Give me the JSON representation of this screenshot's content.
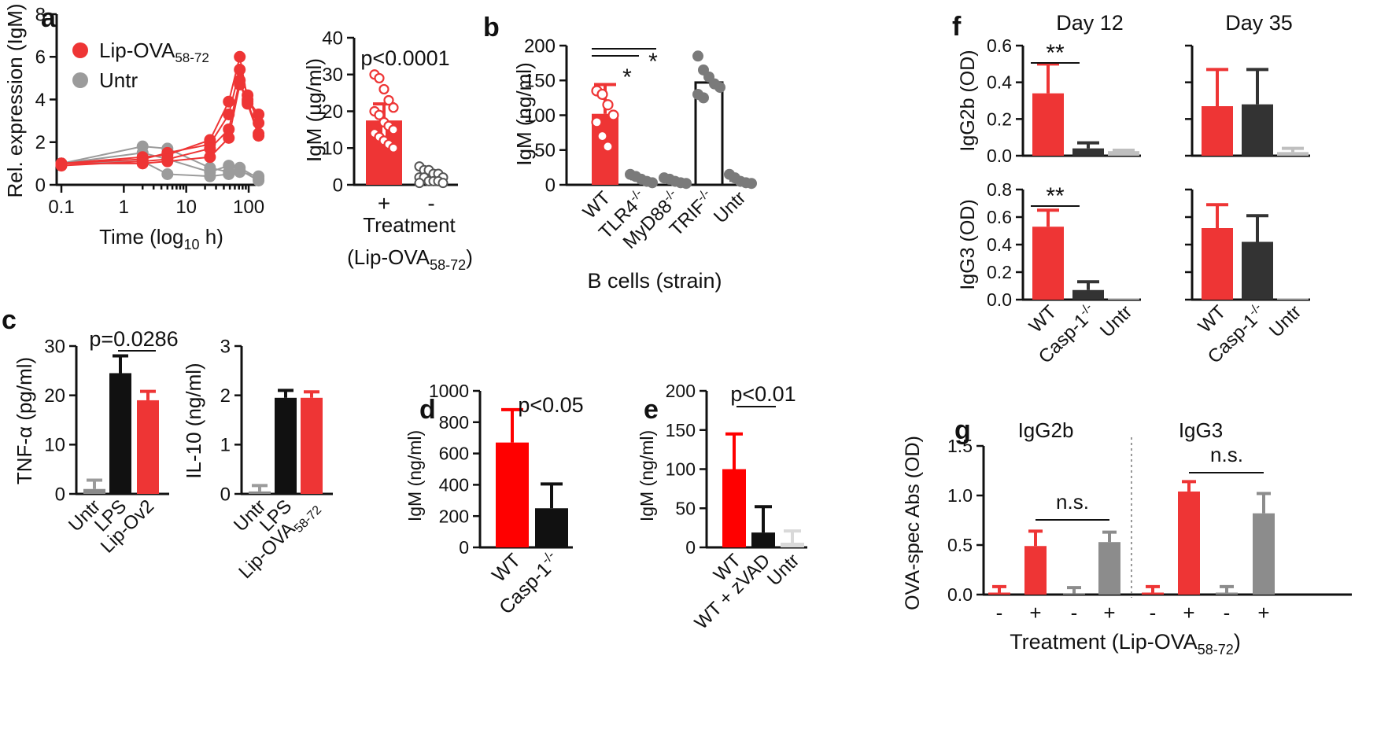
{
  "colors": {
    "red": "#ee3535",
    "grey": "#9b9b9b",
    "black": "#111111",
    "dark": "#333333",
    "light": "#cfcfcf"
  },
  "panels": {
    "a": {
      "letter": "a",
      "legend": [
        {
          "main": "Lip-OVA",
          "sub": "58-72"
        },
        {
          "main": "Untr",
          "sub": ""
        }
      ],
      "chart_data": {
        "type": "line",
        "xscale": "log",
        "xlabel": {
          "main": "Time (log",
          "sub": "10",
          "tail": " h)"
        },
        "ylabel": "Rel. expression (IgM)",
        "xticks": [
          {
            "v": 0.1,
            "label": "0.1"
          },
          {
            "v": 1,
            "label": "1"
          },
          {
            "v": 10,
            "label": "10"
          },
          {
            "v": 100,
            "label": "100"
          }
        ],
        "yticks": [
          0,
          2,
          4,
          6,
          8
        ],
        "ylim": [
          0,
          8
        ],
        "xlim": [
          0.1,
          150
        ],
        "series": [
          {
            "name": "Lip-OVA58-72",
            "color": "#ee3535",
            "lines": [
              [
                [
                  0.1,
                  1.0
                ],
                [
                  2,
                  1.3
                ],
                [
                  5,
                  1.4
                ],
                [
                  24,
                  2.1
                ],
                [
                  48,
                  3.9
                ],
                [
                  72,
                  6.0
                ],
                [
                  96,
                  4.0
                ],
                [
                  144,
                  3.3
                ]
              ],
              [
                [
                  0.1,
                  1.0
                ],
                [
                  2,
                  1.2
                ],
                [
                  5,
                  1.5
                ],
                [
                  24,
                  1.9
                ],
                [
                  48,
                  3.3
                ],
                [
                  72,
                  5.4
                ],
                [
                  96,
                  4.2
                ],
                [
                  144,
                  2.9
                ]
              ],
              [
                [
                  0.1,
                  0.9
                ],
                [
                  2,
                  1.1
                ],
                [
                  5,
                  1.2
                ],
                [
                  24,
                  1.7
                ],
                [
                  48,
                  2.6
                ],
                [
                  72,
                  4.9
                ],
                [
                  96,
                  3.8
                ],
                [
                  144,
                  2.3
                ]
              ],
              [
                [
                  0.1,
                  1.0
                ],
                [
                  2,
                  1.0
                ],
                [
                  5,
                  1.1
                ],
                [
                  24,
                  1.3
                ],
                [
                  48,
                  2.2
                ],
                [
                  72,
                  4.7
                ],
                [
                  96,
                  3.9
                ],
                [
                  144,
                  2.4
                ]
              ]
            ]
          },
          {
            "name": "Untr",
            "color": "#9b9b9b",
            "lines": [
              [
                [
                  0.1,
                  1.0
                ],
                [
                  2,
                  1.8
                ],
                [
                  5,
                  1.7
                ],
                [
                  24,
                  0.8
                ],
                [
                  48,
                  0.6
                ],
                [
                  72,
                  0.7
                ],
                [
                  144,
                  0.2
                ]
              ],
              [
                [
                  0.1,
                  1.0
                ],
                [
                  2,
                  1.5
                ],
                [
                  5,
                  1.2
                ],
                [
                  24,
                  0.6
                ],
                [
                  48,
                  0.9
                ],
                [
                  72,
                  0.8
                ],
                [
                  144,
                  0.3
                ]
              ],
              [
                [
                  0.1,
                  1.0
                ],
                [
                  2,
                  1.1
                ],
                [
                  5,
                  0.5
                ],
                [
                  24,
                  0.4
                ],
                [
                  48,
                  0.5
                ],
                [
                  72,
                  0.6
                ],
                [
                  144,
                  0.4
                ]
              ]
            ]
          }
        ]
      }
    },
    "a2": {
      "chart_data": {
        "type": "bar",
        "ylabel": "IgM (µg/ml)",
        "yticks": [
          0,
          10,
          20,
          30,
          40
        ],
        "ylim": [
          0,
          40
        ],
        "categories": [
          "+",
          "-"
        ],
        "values": [
          17.5,
          2.0
        ],
        "errors": [
          4.5,
          1.0
        ],
        "points": [
          [
            30,
            29,
            26,
            23,
            21,
            20,
            19,
            17,
            16,
            15,
            14,
            13,
            12,
            11,
            10
          ],
          [
            5,
            4,
            4,
            3,
            3,
            2,
            2,
            2,
            1,
            1,
            1,
            0.5,
            0.5
          ]
        ],
        "annotation": "p<0.0001",
        "xlabel": "Treatment",
        "xlabel2": {
          "main": "(Lip-OVA",
          "sub": "58-72",
          "tail": ")"
        }
      }
    },
    "b": {
      "letter": "b",
      "chart_data": {
        "type": "bar",
        "ylabel": "IgM (ng/ml)",
        "yticks": [
          0,
          50,
          100,
          150,
          200
        ],
        "ylim": [
          0,
          200
        ],
        "categories": [
          {
            "main": "WT",
            "sup": ""
          },
          {
            "main": "TLR4",
            "sup": "-/-"
          },
          {
            "main": "MyD88",
            "sup": "-/-"
          },
          {
            "main": "TRIF",
            "sup": "-/-"
          },
          {
            "main": "Untr",
            "sup": ""
          }
        ],
        "values": [
          102,
          8,
          6,
          147,
          6
        ],
        "errors": [
          42,
          0,
          0,
          0,
          0
        ],
        "points": [
          [
            135,
            130,
            115,
            100,
            90,
            70,
            55
          ],
          [
            15,
            12,
            8,
            5,
            3
          ],
          [
            10,
            8,
            5,
            3,
            2
          ],
          [
            185,
            165,
            155,
            145,
            140,
            130,
            125
          ],
          [
            15,
            10,
            5,
            3,
            2
          ]
        ],
        "stars": [
          "*",
          "*"
        ],
        "xlabel": "B cells (strain)"
      }
    },
    "c": {
      "letter": "c",
      "chart_data": [
        {
          "type": "bar",
          "ylabel": "TNF-α (pg/ml)",
          "yticks": [
            0,
            10,
            20,
            30
          ],
          "ylim": [
            0,
            30
          ],
          "categories": [
            {
              "main": "Untr",
              "sub": ""
            },
            {
              "main": "LPS",
              "sub": ""
            },
            {
              "main": "Lip-Ov2",
              "sub": ""
            }
          ],
          "values": [
            1.0,
            24.5,
            19.0
          ],
          "errors": [
            1.8,
            3.5,
            1.8
          ],
          "annotation": "p=0.0286"
        },
        {
          "type": "bar",
          "ylabel": "IL-10 (ng/ml)",
          "yticks": [
            0,
            1,
            2,
            3
          ],
          "ylim": [
            0,
            3
          ],
          "categories": [
            {
              "main": "Untr",
              "sub": ""
            },
            {
              "main": "LPS",
              "sub": ""
            },
            {
              "main": "Lip-OVA",
              "sub": "58-72"
            }
          ],
          "values": [
            0.05,
            1.95,
            1.95
          ],
          "errors": [
            0.12,
            0.15,
            0.12
          ]
        }
      ]
    },
    "d": {
      "letter": "d",
      "chart_data": {
        "type": "bar",
        "ylabel": "IgM (ng/ml)",
        "yticks": [
          0,
          200,
          400,
          600,
          800,
          1000
        ],
        "ylim": [
          0,
          1000
        ],
        "categories": [
          {
            "main": "WT",
            "sup": ""
          },
          {
            "main": "Casp-1",
            "sup": "-/-"
          }
        ],
        "values": [
          670,
          250
        ],
        "errors": [
          210,
          155
        ],
        "annotation": "p<0.05"
      }
    },
    "e": {
      "letter": "e",
      "chart_data": {
        "type": "bar",
        "ylabel": "IgM (ng/ml)",
        "yticks": [
          0,
          50,
          100,
          150,
          200
        ],
        "ylim": [
          0,
          200
        ],
        "categories": [
          {
            "main": "WT",
            "sup": ""
          },
          {
            "main": "WT + zVAD",
            "sup": ""
          },
          {
            "main": "Untr",
            "sup": ""
          }
        ],
        "values": [
          100,
          19,
          6
        ],
        "errors": [
          45,
          33,
          15
        ],
        "annotation": "p<0.01"
      }
    },
    "f": {
      "letter": "f",
      "chart_data": [
        {
          "type": "bar",
          "title": "Day 12",
          "ylabel": "IgG2b (OD)",
          "yticks": [
            0.0,
            0.2,
            0.4,
            0.6
          ],
          "ylim": [
            0,
            0.6
          ],
          "values": [
            0.34,
            0.04,
            0.025
          ],
          "errors": [
            0.16,
            0.03,
            0.005
          ],
          "stars": "**"
        },
        {
          "type": "bar",
          "title": "Day 35",
          "ylabel": "",
          "yticks": [
            0.0,
            0.2,
            0.4,
            0.6
          ],
          "ylim": [
            0,
            0.6
          ],
          "values": [
            0.27,
            0.28,
            0.02
          ],
          "errors": [
            0.2,
            0.19,
            0.02
          ]
        },
        {
          "type": "bar",
          "title": "",
          "ylabel": "IgG3 (OD)",
          "yticks": [
            0.0,
            0.2,
            0.4,
            0.6,
            0.8
          ],
          "ylim": [
            0,
            0.8
          ],
          "values": [
            0.53,
            0.07,
            0.01
          ],
          "errors": [
            0.12,
            0.06,
            0.0
          ],
          "stars": "**",
          "categories": [
            {
              "main": "WT",
              "sup": ""
            },
            {
              "main": "Casp-1",
              "sup": "-/-"
            },
            {
              "main": "Untr",
              "sup": ""
            }
          ]
        },
        {
          "type": "bar",
          "title": "",
          "ylabel": "",
          "yticks": [
            0.0,
            0.2,
            0.4,
            0.6,
            0.8
          ],
          "ylim": [
            0,
            0.8
          ],
          "values": [
            0.52,
            0.42,
            0.01
          ],
          "errors": [
            0.17,
            0.19,
            0.0
          ],
          "categories": [
            {
              "main": "WT",
              "sup": ""
            },
            {
              "main": "Casp-1",
              "sup": "-/-"
            },
            {
              "main": "Untr",
              "sup": ""
            }
          ]
        }
      ]
    },
    "g": {
      "letter": "g",
      "chart_data": {
        "type": "bar",
        "groups": [
          "IgG2b",
          "IgG3"
        ],
        "ylabel": "OVA-spec Abs (OD)",
        "yticks": [
          {
            "v": 0.0,
            "label": "0.0"
          },
          {
            "v": 0.5,
            "label": "0.5"
          },
          {
            "v": 1.0,
            "label": "1.0"
          },
          {
            "v": 1.5,
            "label": "1.5"
          }
        ],
        "ylim": [
          0,
          1.5
        ],
        "categories": [
          "-",
          "+",
          "-",
          "+",
          "-",
          "+",
          "-",
          "+"
        ],
        "values": [
          0.02,
          0.49,
          0.01,
          0.53,
          0.02,
          1.04,
          0.02,
          0.82
        ],
        "errors": [
          0.06,
          0.15,
          0.06,
          0.1,
          0.06,
          0.1,
          0.06,
          0.2
        ],
        "annotations": [
          "n.s.",
          "n.s."
        ],
        "xlabel": {
          "main": "Treatment (Lip-OVA",
          "sub": "58-72",
          "tail": ")"
        }
      }
    }
  }
}
